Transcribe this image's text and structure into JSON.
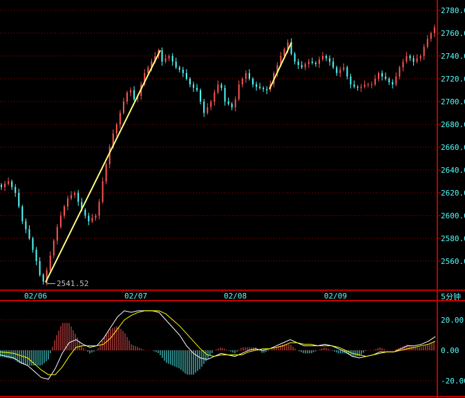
{
  "period_label": "5分钟",
  "colors": {
    "up": "#ff5555",
    "down": "#54ffff",
    "grid": "#c00000",
    "axis_text": "#54ffff",
    "trendline": "#ffff80",
    "dif": "#ffffff",
    "dea": "#ffff00"
  },
  "chart_data": [
    {
      "type": "candlestick",
      "ylim": [
        2530,
        2785
      ],
      "y_ticks": [
        "2560.00",
        "2580.00",
        "2600.00",
        "2620.00",
        "2640.00",
        "2660.00",
        "2680.00",
        "2700.00",
        "2720.00",
        "2740.00",
        "2760.00",
        "2780.00"
      ],
      "x_ticks": [
        "02/06",
        "02/07",
        "02/08",
        "02/09"
      ],
      "low_annotation": "2541.52",
      "close": [
        2625,
        2628,
        2630,
        2625,
        2620,
        2608,
        2595,
        2588,
        2580,
        2570,
        2560,
        2548,
        2542,
        2552,
        2565,
        2578,
        2590,
        2600,
        2608,
        2615,
        2618,
        2620,
        2612,
        2605,
        2600,
        2595,
        2598,
        2600,
        2612,
        2630,
        2645,
        2660,
        2672,
        2680,
        2690,
        2700,
        2708,
        2710,
        2702,
        2705,
        2715,
        2725,
        2730,
        2735,
        2740,
        2745,
        2735,
        2738,
        2740,
        2735,
        2730,
        2728,
        2725,
        2720,
        2715,
        2712,
        2710,
        2700,
        2690,
        2695,
        2700,
        2708,
        2715,
        2712,
        2700,
        2698,
        2695,
        2702,
        2715,
        2720,
        2725,
        2720,
        2715,
        2713,
        2712,
        2711,
        2710,
        2715,
        2725,
        2732,
        2740,
        2746,
        2752,
        2742,
        2735,
        2732,
        2730,
        2733,
        2735,
        2734,
        2733,
        2737,
        2740,
        2738,
        2735,
        2730,
        2725,
        2728,
        2730,
        2722,
        2715,
        2713,
        2712,
        2713,
        2715,
        2715,
        2715,
        2720,
        2725,
        2722,
        2720,
        2717,
        2715,
        2722,
        2730,
        2735,
        2740,
        2738,
        2735,
        2738,
        2740,
        2748,
        2755,
        2760,
        2765
      ],
      "trendlines": [
        {
          "from": "2541.52",
          "to": "2745"
        },
        {
          "from": "2711",
          "to": "2752"
        }
      ]
    },
    {
      "type": "macd",
      "ylim": [
        -25,
        30
      ],
      "y_ticks": [
        "20.00",
        "0.00",
        "-20.00"
      ],
      "dif": [
        -3,
        -4,
        -5,
        -8,
        -10,
        -14,
        -18,
        -19,
        -12,
        -2,
        5,
        7,
        4,
        2,
        3,
        8,
        15,
        22,
        26,
        25,
        26,
        26,
        26,
        25,
        20,
        15,
        10,
        3,
        -2,
        -5,
        -6,
        -4,
        -2,
        -3,
        -4,
        -2,
        0,
        1,
        0,
        1,
        3,
        5,
        7,
        5,
        3,
        3,
        3,
        4,
        3,
        1,
        -1,
        -4,
        -5,
        -4,
        -3,
        -1,
        -1,
        -1,
        1,
        3,
        3,
        4,
        6,
        9
      ],
      "dea": [
        -1,
        -1.5,
        -2,
        -3.5,
        -5,
        -9,
        -13,
        -16,
        -16,
        -11,
        -4,
        2,
        3,
        3,
        3,
        4,
        8,
        14,
        20,
        23,
        25,
        26,
        26,
        26,
        24,
        20,
        16,
        11,
        6,
        1,
        -3,
        -4,
        -3,
        -3,
        -3,
        -3,
        -1,
        0,
        1,
        1,
        2,
        3,
        5,
        5,
        4,
        4,
        3,
        3,
        3,
        2,
        0,
        -2,
        -3,
        -4,
        -3,
        -2,
        -1,
        -1,
        0,
        1,
        2,
        3,
        4,
        6
      ]
    }
  ]
}
